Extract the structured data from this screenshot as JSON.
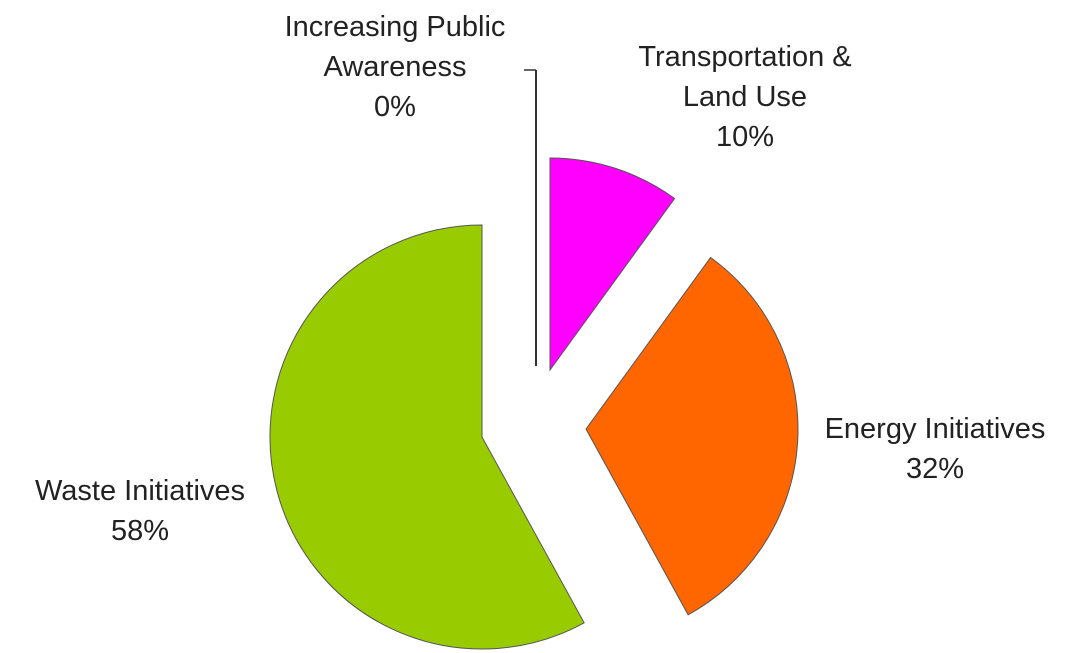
{
  "chart_data": {
    "type": "pie",
    "exploded": true,
    "legend": "none",
    "slices": [
      {
        "name": "Increasing Public Awareness",
        "value": 0,
        "percent_label": "0%",
        "label_lines": [
          "Increasing Public",
          "Awareness"
        ],
        "color": "#ffffff"
      },
      {
        "name": "Transportation & Land Use",
        "value": 10,
        "percent_label": "10%",
        "label_lines": [
          "Transportation &",
          "Land Use"
        ],
        "color": "#ff00ff"
      },
      {
        "name": "Energy Initiatives",
        "value": 32,
        "percent_label": "32%",
        "label_lines": [
          "Energy Initiatives"
        ],
        "color": "#ff6600"
      },
      {
        "name": "Waste Initiatives",
        "value": 58,
        "percent_label": "58%",
        "label_lines": [
          "Waste Initiatives"
        ],
        "color": "#99cc00"
      }
    ]
  }
}
